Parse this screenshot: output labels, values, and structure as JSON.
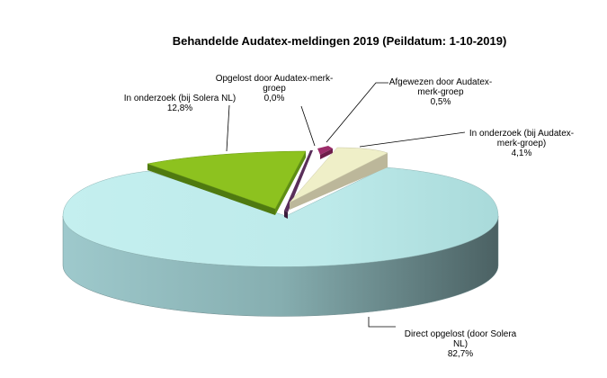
{
  "chart_data": {
    "type": "pie",
    "title": "Behandelde Audatex-meldingen 2019 (Peildatum: 1-10-2019)",
    "legend": "none",
    "slices": [
      {
        "label_lines": [
          "Direct opgelost (door Solera",
          "NL)"
        ],
        "value_text": "82,7%",
        "value": 82.7,
        "color": "#b8eaea"
      },
      {
        "label_lines": [
          "In onderzoek (bij Solera NL)"
        ],
        "value_text": "12,8%",
        "value": 12.8,
        "color": "#8dc21f"
      },
      {
        "label_lines": [
          "Opgelost door Audatex-merk-",
          "groep"
        ],
        "value_text": "0,0%",
        "value": 0.0,
        "color": "#5a2f5a"
      },
      {
        "label_lines": [
          "Afgewezen door Audatex-",
          "merk-groep"
        ],
        "value_text": "0,5%",
        "value": 0.5,
        "color": "#9c2c6a"
      },
      {
        "label_lines": [
          "In onderzoek (bij Audatex-",
          "merk-groep)"
        ],
        "value_text": "4,1%",
        "value": 4.1,
        "color": "#efefc8"
      }
    ]
  }
}
